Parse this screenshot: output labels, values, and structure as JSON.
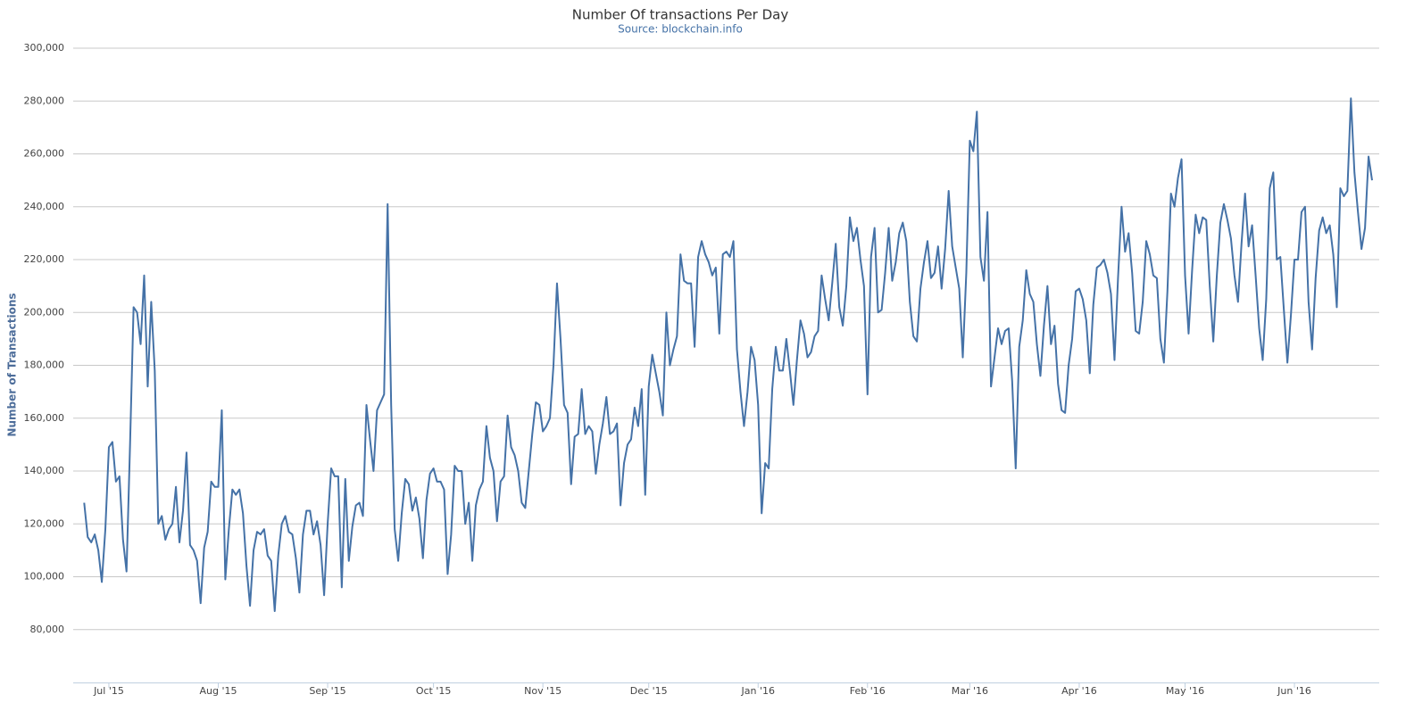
{
  "chart_data": {
    "type": "line",
    "title": "Number Of transactions Per Day",
    "subtitle": "Source: blockchain.info",
    "y_label": "Number of Transactions",
    "categories": [
      null,
      null,
      null,
      null,
      null,
      null,
      null,
      "Jul '15",
      null,
      null,
      null,
      null,
      null,
      null,
      null,
      null,
      null,
      null,
      null,
      null,
      null,
      null,
      null,
      null,
      null,
      null,
      null,
      null,
      null,
      null,
      null,
      null,
      null,
      null,
      null,
      null,
      null,
      null,
      "Aug '15",
      null,
      null,
      null,
      null,
      null,
      null,
      null,
      null,
      null,
      null,
      null,
      null,
      null,
      null,
      null,
      null,
      null,
      null,
      null,
      null,
      null,
      null,
      null,
      null,
      null,
      null,
      null,
      null,
      null,
      null,
      "Sep '15",
      null,
      null,
      null,
      null,
      null,
      null,
      null,
      null,
      null,
      null,
      null,
      null,
      null,
      null,
      null,
      null,
      null,
      null,
      null,
      null,
      null,
      null,
      null,
      null,
      null,
      null,
      null,
      null,
      null,
      "Oct '15",
      null,
      null,
      null,
      null,
      null,
      null,
      null,
      null,
      null,
      null,
      null,
      null,
      null,
      null,
      null,
      null,
      null,
      null,
      null,
      null,
      null,
      null,
      null,
      null,
      null,
      null,
      null,
      null,
      null,
      null,
      "Nov '15",
      null,
      null,
      null,
      null,
      null,
      null,
      null,
      null,
      null,
      null,
      null,
      null,
      null,
      null,
      null,
      null,
      null,
      null,
      null,
      null,
      null,
      null,
      null,
      null,
      null,
      null,
      null,
      null,
      null,
      "Dec '15",
      null,
      null,
      null,
      null,
      null,
      null,
      null,
      null,
      null,
      null,
      null,
      null,
      null,
      null,
      null,
      null,
      null,
      null,
      null,
      null,
      null,
      null,
      null,
      null,
      null,
      null,
      null,
      null,
      null,
      null,
      "Jan '16",
      null,
      null,
      null,
      null,
      null,
      null,
      null,
      null,
      null,
      null,
      null,
      null,
      null,
      null,
      null,
      null,
      null,
      null,
      null,
      null,
      null,
      null,
      null,
      null,
      null,
      null,
      null,
      null,
      null,
      null,
      "Feb '16",
      null,
      null,
      null,
      null,
      null,
      null,
      null,
      null,
      null,
      null,
      null,
      null,
      null,
      null,
      null,
      null,
      null,
      null,
      null,
      null,
      null,
      null,
      null,
      null,
      null,
      null,
      null,
      null,
      "Mar '16",
      null,
      null,
      null,
      null,
      null,
      null,
      null,
      null,
      null,
      null,
      null,
      null,
      null,
      null,
      null,
      null,
      null,
      null,
      null,
      null,
      null,
      null,
      null,
      null,
      null,
      null,
      null,
      null,
      null,
      null,
      "Apr '16",
      null,
      null,
      null,
      null,
      null,
      null,
      null,
      null,
      null,
      null,
      null,
      null,
      null,
      null,
      null,
      null,
      null,
      null,
      null,
      null,
      null,
      null,
      null,
      null,
      null,
      null,
      null,
      null,
      null,
      "May '16",
      null,
      null,
      null,
      null,
      null,
      null,
      null,
      null,
      null,
      null,
      null,
      null,
      null,
      null,
      null,
      null,
      null,
      null,
      null,
      null,
      null,
      null,
      null,
      null,
      null,
      null,
      null,
      null,
      null,
      null,
      "Jun '16",
      null,
      null,
      null,
      null,
      null,
      null,
      null,
      null,
      null,
      null,
      null,
      null,
      null,
      null,
      null,
      null,
      null,
      null,
      null,
      null,
      null,
      null
    ],
    "series": [
      {
        "name": "Number of Transactions",
        "color": "#4572a7",
        "values": [
          128000,
          115000,
          113000,
          116000,
          110000,
          98000,
          118000,
          149000,
          151000,
          136000,
          138000,
          114000,
          102000,
          150000,
          202000,
          200000,
          188000,
          214000,
          172000,
          204000,
          178000,
          120000,
          123000,
          114000,
          118000,
          120000,
          134000,
          113000,
          125000,
          147000,
          112000,
          110000,
          106000,
          90000,
          111000,
          117000,
          136000,
          134000,
          134000,
          163000,
          99000,
          118000,
          133000,
          131000,
          133000,
          124000,
          104000,
          89000,
          110000,
          117000,
          116000,
          118000,
          108000,
          106000,
          87000,
          108000,
          120000,
          123000,
          117000,
          116000,
          107000,
          94000,
          116000,
          125000,
          125000,
          116000,
          121000,
          112000,
          93000,
          120000,
          141000,
          138000,
          138000,
          96000,
          137000,
          106000,
          119000,
          127000,
          128000,
          123000,
          165000,
          152000,
          140000,
          163000,
          166000,
          169000,
          241000,
          165000,
          118000,
          106000,
          124000,
          137000,
          135000,
          125000,
          130000,
          122000,
          107000,
          129000,
          139000,
          141000,
          136000,
          136000,
          133000,
          101000,
          116000,
          142000,
          140000,
          140000,
          120000,
          128000,
          106000,
          127000,
          133000,
          136000,
          157000,
          145000,
          140000,
          121000,
          136000,
          138000,
          161000,
          149000,
          146000,
          140000,
          128000,
          126000,
          140000,
          154000,
          166000,
          165000,
          155000,
          157000,
          160000,
          180000,
          211000,
          190000,
          165000,
          162000,
          135000,
          153000,
          154000,
          171000,
          154000,
          157000,
          155000,
          139000,
          150000,
          158000,
          168000,
          154000,
          155000,
          158000,
          127000,
          143000,
          150000,
          152000,
          164000,
          157000,
          171000,
          131000,
          172000,
          184000,
          177000,
          170000,
          161000,
          200000,
          180000,
          186000,
          191000,
          222000,
          212000,
          211000,
          211000,
          187000,
          221000,
          227000,
          222000,
          219000,
          214000,
          217000,
          192000,
          222000,
          223000,
          221000,
          227000,
          186000,
          170000,
          157000,
          170000,
          187000,
          182000,
          165000,
          124000,
          143000,
          141000,
          171000,
          187000,
          178000,
          178000,
          190000,
          178000,
          165000,
          182000,
          197000,
          192000,
          183000,
          185000,
          191000,
          193000,
          214000,
          205000,
          197000,
          211000,
          226000,
          202000,
          195000,
          210000,
          236000,
          227000,
          232000,
          220000,
          210000,
          169000,
          221000,
          232000,
          200000,
          201000,
          215000,
          232000,
          212000,
          219000,
          230000,
          234000,
          227000,
          204000,
          191000,
          189000,
          209000,
          219000,
          227000,
          213000,
          215000,
          225000,
          209000,
          224000,
          246000,
          225000,
          217000,
          209000,
          183000,
          215000,
          265000,
          261000,
          276000,
          221000,
          212000,
          238000,
          172000,
          183000,
          194000,
          188000,
          193000,
          194000,
          174000,
          141000,
          187000,
          197000,
          216000,
          207000,
          204000,
          188000,
          176000,
          195000,
          210000,
          188000,
          195000,
          173000,
          163000,
          162000,
          180000,
          190000,
          208000,
          209000,
          205000,
          197000,
          177000,
          203000,
          217000,
          218000,
          220000,
          215000,
          207000,
          182000,
          213000,
          240000,
          223000,
          230000,
          215000,
          193000,
          192000,
          204000,
          227000,
          222000,
          214000,
          213000,
          190000,
          181000,
          208000,
          245000,
          240000,
          251000,
          258000,
          214000,
          192000,
          216000,
          237000,
          230000,
          236000,
          235000,
          210000,
          189000,
          214000,
          234000,
          241000,
          235000,
          228000,
          214000,
          204000,
          226000,
          245000,
          225000,
          233000,
          214000,
          194000,
          182000,
          205000,
          247000,
          253000,
          220000,
          221000,
          201000,
          181000,
          199000,
          220000,
          220000,
          238000,
          240000,
          204000,
          186000,
          213000,
          231000,
          236000,
          230000,
          233000,
          222000,
          202000,
          247000,
          244000,
          246000,
          281000,
          253000,
          238000,
          224000,
          232000,
          259000,
          250000
        ]
      }
    ],
    "ylim": [
      60000,
      300000
    ],
    "yticks": [
      {
        "value": 80000,
        "label": "80,000"
      },
      {
        "value": 100000,
        "label": "100,000"
      },
      {
        "value": 120000,
        "label": "120,000"
      },
      {
        "value": 140000,
        "label": "140,000"
      },
      {
        "value": 160000,
        "label": "160,000"
      },
      {
        "value": 180000,
        "label": "180,000"
      },
      {
        "value": 200000,
        "label": "200,000"
      },
      {
        "value": 220000,
        "label": "220,000"
      },
      {
        "value": 240000,
        "label": "240,000"
      },
      {
        "value": 260000,
        "label": "260,000"
      },
      {
        "value": 280000,
        "label": "280,000"
      },
      {
        "value": 300000,
        "label": "300,000"
      }
    ],
    "grid": true
  }
}
